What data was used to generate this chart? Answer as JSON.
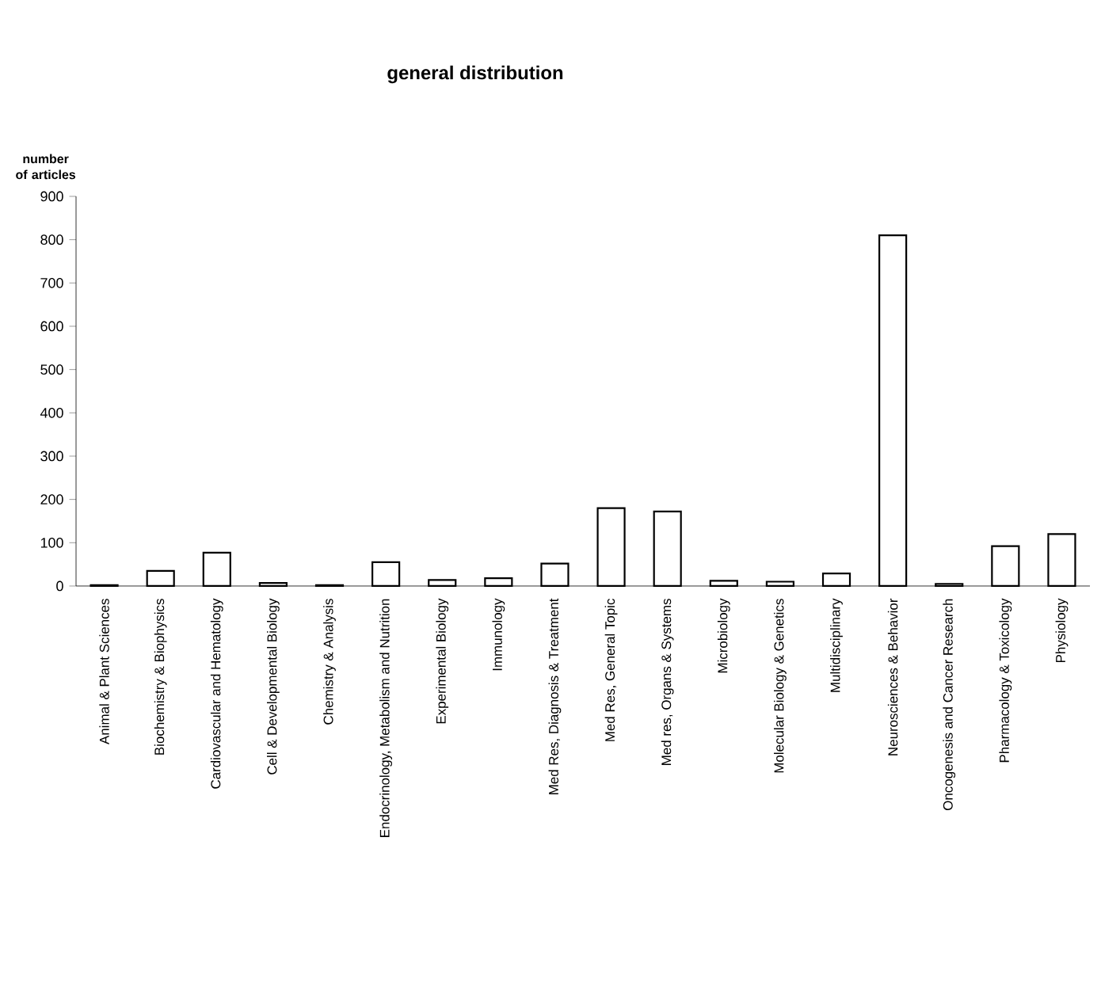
{
  "chart_data": {
    "type": "bar",
    "title": "general distribution",
    "ylabel": "number of articles",
    "categories": [
      "Animal & Plant Sciences",
      "Biochemistry & Biophysics",
      "Cardiovascular and Hematology",
      "Cell & Developmental Biology",
      "Chemistry & Analysis",
      "Endocrinology, Metabolism and Nutrition",
      "Experimental Biology",
      "Immunology",
      "Med Res, Diagnosis & Treatment",
      "Med Res, General Topic",
      "Med res, Organs & Systems",
      "Microbiology",
      "Molecular Biology & Genetics",
      "Multidisciplinary",
      "Neurosciences & Behavior",
      "Oncogenesis and Cancer Research",
      "Pharmacology & Toxicology",
      "Physiology"
    ],
    "values": [
      2,
      35,
      77,
      7,
      2,
      55,
      14,
      18,
      52,
      180,
      172,
      12,
      10,
      29,
      810,
      5,
      92,
      120
    ],
    "color": "#ffffff",
    "ylim": [
      0,
      900
    ],
    "yticks": [
      0,
      100,
      200,
      300,
      400,
      500,
      600,
      700,
      800,
      900
    ],
    "grid": false
  }
}
